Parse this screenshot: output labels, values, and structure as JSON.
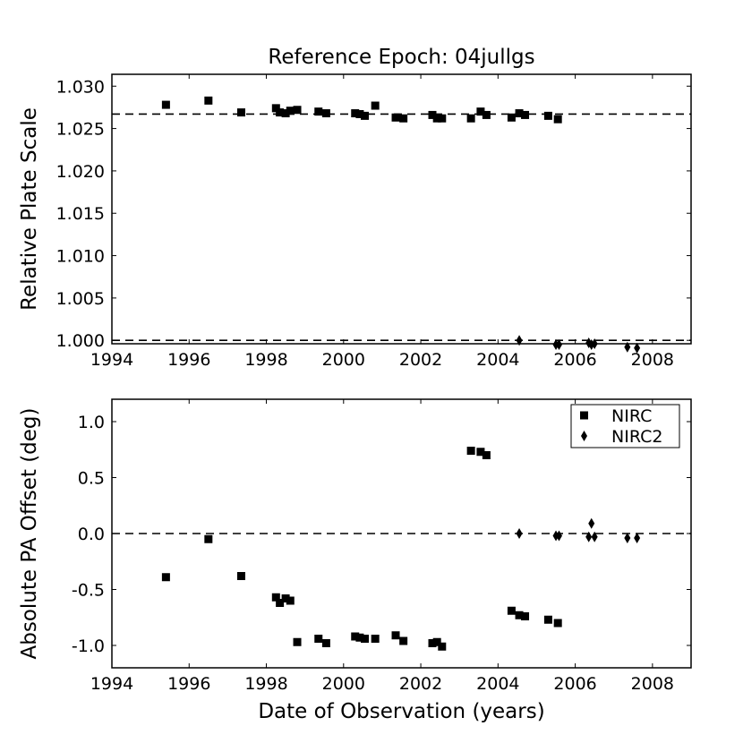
{
  "chart_data": [
    {
      "type": "scatter",
      "title": "Reference Epoch: 04jullgs",
      "xlabel": "",
      "ylabel": "Relative Plate Scale",
      "xlim": [
        1994,
        2009
      ],
      "ylim": [
        0.9996,
        1.0314
      ],
      "xticks": [
        1994,
        1996,
        1998,
        2000,
        2002,
        2004,
        2006,
        2008
      ],
      "yticks": [
        1.0,
        1.005,
        1.01,
        1.015,
        1.02,
        1.025,
        1.03
      ],
      "ytick_labels": [
        "1.000",
        "1.005",
        "1.010",
        "1.015",
        "1.020",
        "1.025",
        "1.030"
      ],
      "hlines": [
        1.0267,
        1.0
      ],
      "legend": null,
      "series": [
        {
          "name": "NIRC",
          "marker": "square",
          "x": [
            1995.4,
            1996.5,
            1997.35,
            1998.25,
            1998.35,
            1998.5,
            1998.62,
            1998.8,
            1999.35,
            1999.55,
            2000.3,
            2000.42,
            2000.55,
            2000.82,
            2001.35,
            2001.55,
            2002.3,
            2002.42,
            2002.55,
            2003.3,
            2003.55,
            2003.7,
            2004.35,
            2004.55,
            2004.7,
            2005.3,
            2005.55
          ],
          "y": [
            1.0278,
            1.0283,
            1.0269,
            1.0274,
            1.0269,
            1.0268,
            1.0271,
            1.0272,
            1.027,
            1.0268,
            1.0268,
            1.0267,
            1.0265,
            1.0277,
            1.0263,
            1.0262,
            1.0266,
            1.0262,
            1.0262,
            1.0262,
            1.027,
            1.0266,
            1.0263,
            1.0268,
            1.0266,
            1.0265,
            1.0261
          ]
        },
        {
          "name": "NIRC2",
          "marker": "diamond",
          "x": [
            2004.55,
            2005.5,
            2005.58,
            2006.35,
            2006.42,
            2006.5,
            2007.35,
            2007.6
          ],
          "y": [
            1.0,
            0.9995,
            0.9995,
            0.9997,
            0.9995,
            0.9996,
            0.9992,
            0.9991
          ]
        }
      ]
    },
    {
      "type": "scatter",
      "title": "",
      "xlabel": "Date of Observation (years)",
      "ylabel": "Absolute PA Offset (deg)",
      "xlim": [
        1994,
        2009
      ],
      "ylim": [
        -1.2,
        1.2
      ],
      "xticks": [
        1994,
        1996,
        1998,
        2000,
        2002,
        2004,
        2006,
        2008
      ],
      "yticks": [
        -1.0,
        -0.5,
        0.0,
        0.5,
        1.0
      ],
      "ytick_labels": [
        "-1.0",
        "-0.5",
        "0.0",
        "0.5",
        "1.0"
      ],
      "hlines": [
        0.0
      ],
      "legend": "top-right",
      "series": [
        {
          "name": "NIRC",
          "marker": "square",
          "x": [
            1995.4,
            1996.5,
            1997.35,
            1998.25,
            1998.35,
            1998.5,
            1998.62,
            1998.8,
            1999.35,
            1999.55,
            2000.3,
            2000.42,
            2000.55,
            2000.82,
            2001.35,
            2001.55,
            2002.3,
            2002.42,
            2002.55,
            2003.3,
            2003.55,
            2003.7,
            2004.35,
            2004.55,
            2004.7,
            2005.3,
            2005.55
          ],
          "y": [
            -0.39,
            -0.05,
            -0.38,
            -0.57,
            -0.62,
            -0.58,
            -0.6,
            -0.97,
            -0.94,
            -0.98,
            -0.92,
            -0.93,
            -0.94,
            -0.94,
            -0.91,
            -0.96,
            -0.98,
            -0.97,
            -1.01,
            0.74,
            0.73,
            0.7,
            -0.69,
            -0.73,
            -0.74,
            -0.77,
            -0.8
          ]
        },
        {
          "name": "NIRC2",
          "marker": "diamond",
          "x": [
            2004.55,
            2005.5,
            2005.58,
            2006.35,
            2006.42,
            2006.5,
            2007.35,
            2007.6
          ],
          "y": [
            0.0,
            -0.02,
            -0.02,
            -0.03,
            0.09,
            -0.03,
            -0.04,
            -0.04
          ]
        }
      ]
    }
  ]
}
